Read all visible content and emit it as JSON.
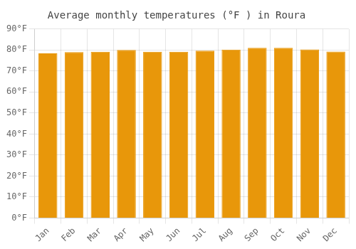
{
  "chart_data": {
    "type": "bar",
    "title": "Average monthly temperatures (°F ) in Roura",
    "categories": [
      "Jan",
      "Feb",
      "Mar",
      "Apr",
      "May",
      "Jun",
      "Jul",
      "Aug",
      "Sep",
      "Oct",
      "Nov",
      "Dec"
    ],
    "values": [
      78.4,
      79.0,
      79.2,
      80.0,
      79.2,
      79.2,
      79.7,
      80.2,
      81.0,
      81.0,
      80.3,
      79.3
    ],
    "color": "#E8970A",
    "ylim": [
      0,
      90
    ],
    "yticks": [
      {
        "value": 0,
        "label": "0°F"
      },
      {
        "value": 10,
        "label": "10°F"
      },
      {
        "value": 20,
        "label": "20°F"
      },
      {
        "value": 30,
        "label": "30°F"
      },
      {
        "value": 40,
        "label": "40°F"
      },
      {
        "value": 50,
        "label": "50°F"
      },
      {
        "value": 60,
        "label": "60°F"
      },
      {
        "value": 70,
        "label": "70°F"
      },
      {
        "value": 80,
        "label": "80°F"
      },
      {
        "value": 90,
        "label": "90°F"
      }
    ],
    "grid": true
  }
}
